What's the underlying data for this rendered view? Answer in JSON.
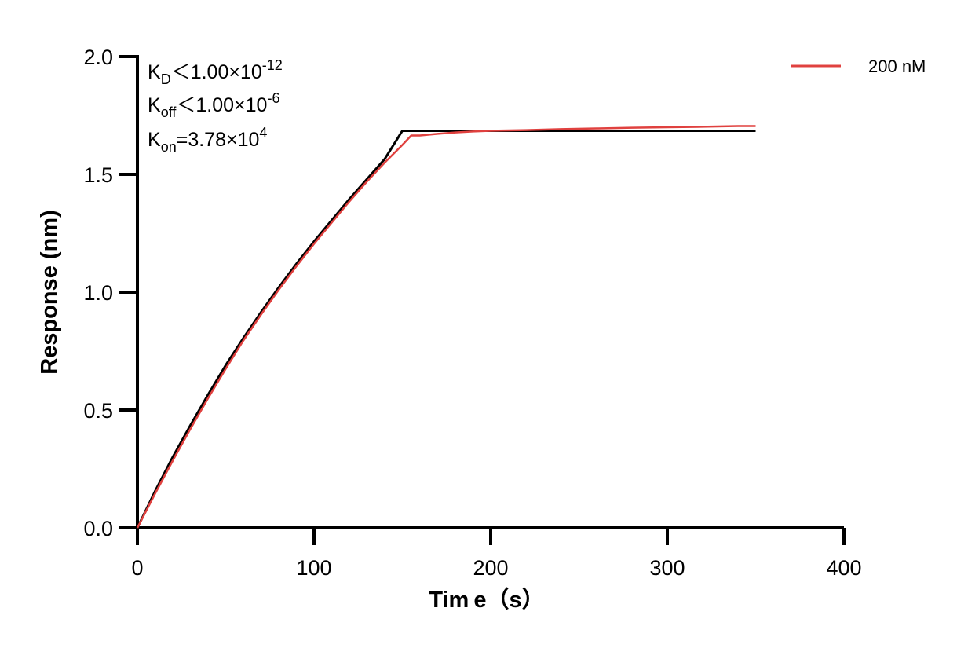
{
  "chart_data": {
    "type": "line",
    "x_axis": {
      "label": "Time【s】",
      "label_parts": [
        "Tim",
        "e",
        "（",
        "s",
        "）"
      ],
      "range": [
        0,
        400
      ],
      "ticks": [
        0,
        100,
        200,
        300,
        400
      ],
      "tick_labels": [
        "0",
        "100",
        "200",
        "300",
        "400"
      ]
    },
    "y_axis": {
      "label": "Response (nm)",
      "range": [
        0,
        2.0
      ],
      "ticks": [
        0,
        0.5,
        1.0,
        1.5,
        2.0
      ],
      "tick_labels": [
        "0.0",
        "0.5",
        "1.0",
        "1.5",
        "2.0"
      ]
    },
    "grid": false,
    "legend": {
      "placement": "top-right",
      "entries": [
        {
          "name": "200 nM",
          "color": "#e0413f"
        }
      ]
    },
    "annotations": {
      "kd": {
        "main": "K",
        "sub": "D",
        "rel": "＜1.00×10",
        "sup": "-12"
      },
      "koff": {
        "main": "K",
        "sub": "off",
        "rel": "＜1.00×10",
        "sup": "-6"
      },
      "kon": {
        "main": "K",
        "sub": "on",
        "rel": "=3.78×10",
        "sup": "4"
      }
    },
    "series": [
      {
        "name": "200 nM",
        "color": "#e0413f",
        "role": "measured",
        "x": [
          0,
          10,
          20,
          30,
          40,
          50,
          60,
          70,
          80,
          90,
          100,
          110,
          120,
          130,
          140,
          150,
          155,
          160,
          170,
          180,
          190,
          200,
          220,
          240,
          260,
          280,
          300,
          320,
          340,
          350
        ],
        "y": [
          0.0,
          0.145,
          0.285,
          0.42,
          0.55,
          0.675,
          0.795,
          0.905,
          1.01,
          1.11,
          1.205,
          1.295,
          1.385,
          1.47,
          1.55,
          1.625,
          1.665,
          1.665,
          1.672,
          1.678,
          1.682,
          1.685,
          1.688,
          1.692,
          1.695,
          1.698,
          1.7,
          1.702,
          1.705,
          1.705
        ]
      },
      {
        "name": "",
        "color": "#000000",
        "role": "fit",
        "x": [
          0,
          10,
          20,
          30,
          40,
          50,
          60,
          70,
          80,
          90,
          100,
          110,
          120,
          130,
          140,
          150,
          200,
          250,
          300,
          350
        ],
        "y": [
          0.0,
          0.155,
          0.3,
          0.435,
          0.565,
          0.69,
          0.805,
          0.915,
          1.02,
          1.12,
          1.215,
          1.305,
          1.395,
          1.48,
          1.565,
          1.685,
          1.685,
          1.685,
          1.685,
          1.685
        ]
      }
    ]
  }
}
